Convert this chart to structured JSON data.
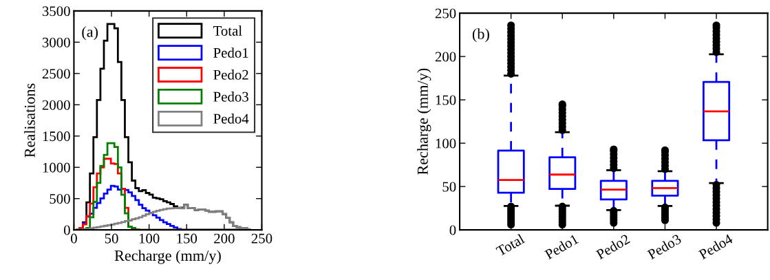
{
  "chart_data": [
    {
      "type": "histogram",
      "xlabel": "Recharge (mm/y)",
      "ylabel": "Realisations",
      "annotations": [
        "(a)"
      ],
      "bins": [
        2.7,
        7.35,
        12,
        16.65,
        21.3,
        25.95,
        30.6,
        35.25,
        39.9,
        44.55,
        49.2,
        53.85,
        58.5,
        63.15,
        67.8,
        72.45,
        77.1,
        81.75,
        86.4,
        91.05,
        95.7,
        100.35,
        105,
        109.65,
        114.3,
        118.95,
        123.6,
        128.25,
        132.9,
        137.55,
        142.2,
        146.85,
        151.5,
        156.15,
        160.8,
        165.45,
        170.1,
        174.75,
        179.4,
        184.05,
        188.7,
        193.35,
        198,
        202.65,
        207.3,
        211.95,
        216.6,
        221.25,
        225.9,
        230.55,
        235.2
      ],
      "series": [
        {
          "name": "Total",
          "color": "#000000",
          "values": [
            0,
            10,
            120,
            440,
            902,
            1482,
            2077,
            2577,
            3024,
            3290,
            3290,
            3222,
            2683,
            2077,
            1482,
            1080,
            788,
            667,
            620,
            635,
            590,
            564,
            515,
            504,
            489,
            459,
            440,
            414,
            376,
            353,
            355,
            402,
            350,
            346,
            316,
            327,
            327,
            308,
            290,
            290,
            297,
            297,
            252,
            196,
            120,
            64,
            45,
            26,
            26,
            8
          ]
        },
        {
          "name": "Pedo1",
          "color": "#0000ff",
          "values": [
            0,
            5,
            106,
            212,
            258,
            352,
            428,
            504,
            580,
            644,
            705,
            694,
            644,
            656,
            637,
            599,
            542,
            477,
            402,
            346,
            308,
            270,
            233,
            196,
            158,
            120,
            94,
            64,
            38,
            15,
            0,
            0,
            0,
            0,
            0,
            0,
            0,
            0,
            0,
            0,
            0,
            0,
            0,
            0,
            0,
            0,
            0,
            0,
            0,
            0
          ]
        },
        {
          "name": "Pedo2",
          "color": "#ff0000",
          "values": [
            0,
            30,
            87,
            220,
            420,
            682,
            902,
            997,
            1137,
            1137,
            1061,
            1054,
            902,
            656,
            352,
            50,
            20,
            5,
            0,
            0,
            0,
            0,
            0,
            0,
            0,
            0,
            0,
            0,
            0,
            0,
            0,
            0,
            0,
            0,
            0,
            0,
            0,
            0,
            0,
            0,
            0,
            0,
            0,
            0,
            0,
            0,
            0,
            0,
            0,
            0
          ]
        },
        {
          "name": "Pedo3",
          "color": "#008000",
          "values": [
            0,
            0,
            10,
            30,
            200,
            447,
            750,
            1023,
            1198,
            1387,
            1387,
            1326,
            997,
            561,
            265,
            50,
            30,
            5,
            0,
            0,
            0,
            0,
            0,
            0,
            0,
            0,
            0,
            0,
            0,
            0,
            0,
            0,
            0,
            0,
            0,
            0,
            0,
            0,
            0,
            0,
            0,
            0,
            0,
            0,
            0,
            0,
            0,
            0,
            0,
            0
          ]
        },
        {
          "name": "Pedo4",
          "color": "#808080",
          "values": [
            0,
            0,
            5,
            15,
            25,
            35,
            45,
            55,
            65,
            75,
            85,
            100,
            110,
            125,
            140,
            150,
            170,
            185,
            200,
            225,
            250,
            270,
            290,
            305,
            320,
            330,
            340,
            345,
            350,
            350,
            345,
            402,
            350,
            346,
            316,
            327,
            327,
            308,
            290,
            290,
            297,
            297,
            252,
            196,
            120,
            64,
            45,
            26,
            26,
            8
          ]
        }
      ],
      "xlim": [
        0,
        250
      ],
      "xticks": [
        0,
        50,
        100,
        150,
        200,
        250
      ],
      "ylim": [
        0,
        3500
      ],
      "yticks": [
        0,
        500,
        1000,
        1500,
        2000,
        2500,
        3000,
        3500
      ],
      "legend": "top right"
    },
    {
      "type": "box",
      "ylabel": "Recharge (mm/y)",
      "annotations": [
        "(b)"
      ],
      "categories": [
        "Total",
        "Pedo1",
        "Pedo2",
        "Pedo3",
        "Pedo4"
      ],
      "series": [
        {
          "color": "#0000ff",
          "boxes": [
            {
              "low": 27.6,
              "q1": 42.8,
              "median": 57.5,
              "q3": 91.4,
              "high": 178,
              "outliers": [
                6,
                9,
                12,
                15,
                18,
                21,
                24,
                27,
                180,
                184,
                188,
                192,
                196,
                200,
                204,
                208,
                212,
                216,
                220,
                224,
                228,
                232,
                236
              ]
            },
            {
              "low": 27.9,
              "q1": 47.2,
              "median": 63.8,
              "q3": 83.7,
              "high": 112.7,
              "outliers": [
                6,
                9,
                12,
                15,
                18,
                21,
                24,
                27,
                115,
                119,
                123,
                127,
                131,
                135,
                139,
                143,
                145
              ]
            },
            {
              "low": 22.9,
              "q1": 35.1,
              "median": 46.4,
              "q3": 56.6,
              "high": 68.8,
              "outliers": [
                8,
                11,
                14,
                17,
                20,
                22,
                71,
                75,
                79,
                83,
                87,
                91,
                93
              ]
            },
            {
              "low": 27.6,
              "q1": 39.5,
              "median": 48.3,
              "q3": 56.6,
              "high": 67.7,
              "outliers": [
                11,
                14,
                17,
                20,
                23,
                26,
                70,
                74,
                78,
                82,
                86,
                90,
                92
              ]
            },
            {
              "low": 53.9,
              "q1": 103.3,
              "median": 136.7,
              "q3": 170.7,
              "high": 202.5,
              "outliers": [
                8,
                12,
                16,
                20,
                24,
                28,
                32,
                36,
                40,
                44,
                48,
                52,
                205,
                209,
                213,
                217,
                221,
                225,
                229,
                233,
                236
              ]
            }
          ]
        }
      ],
      "ylim": [
        0,
        250
      ],
      "yticks": [
        0,
        50,
        100,
        150,
        200,
        250
      ]
    }
  ]
}
